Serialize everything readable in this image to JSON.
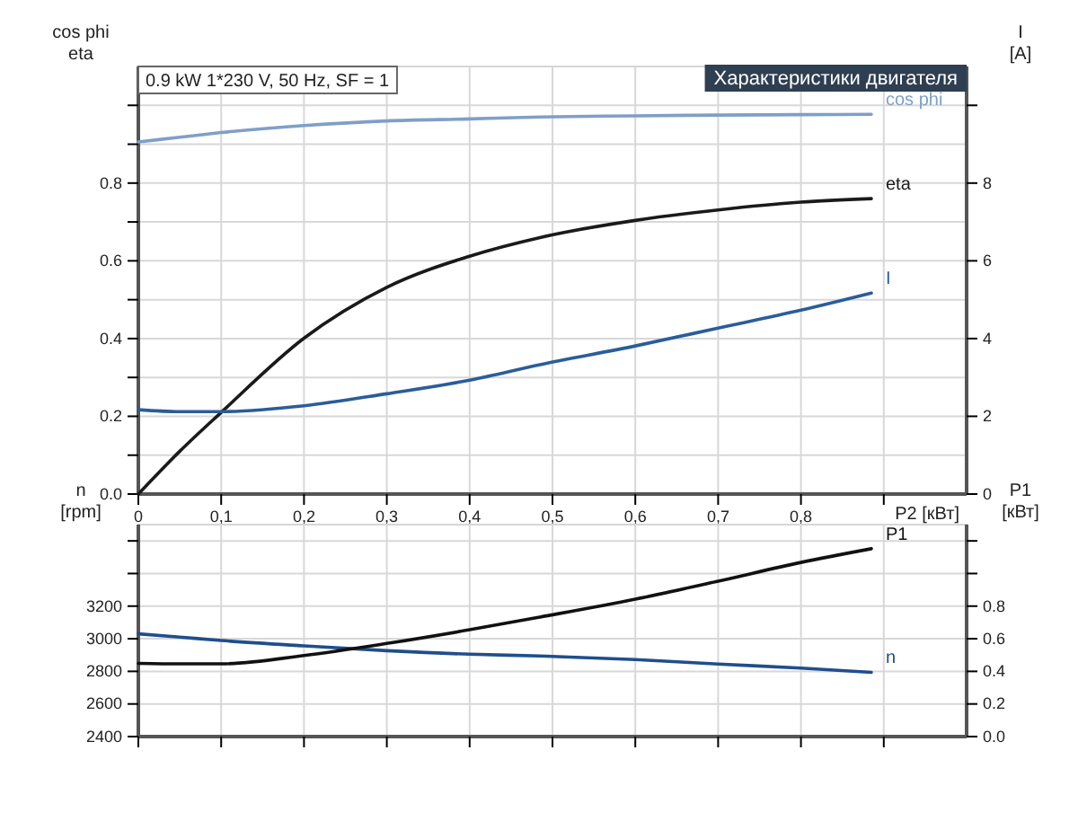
{
  "chart_data": [
    {
      "type": "line",
      "title": "Характеристики двигателя",
      "subtitle": "0.9 kW   1*230 V, 50 Hz, SF = 1",
      "xlabel": "P2 [кВт]",
      "ylabel": "cos phi\neta",
      "y2label": "I\n[A]",
      "grid": true,
      "legend": false,
      "x": [
        0,
        0.05,
        0.1,
        0.2,
        0.3,
        0.4,
        0.485,
        0.6,
        0.7,
        0.8,
        0.885
      ],
      "xlim": [
        0,
        1
      ],
      "xticks": [
        0,
        {
          "value": 0.1,
          "label": "0,1"
        },
        {
          "value": 0.2,
          "label": "0,2"
        },
        {
          "value": 0.3,
          "label": "0,3"
        },
        {
          "value": 0.4,
          "label": "0,4"
        },
        {
          "value": 0.5,
          "label": "0,5"
        },
        {
          "value": 0.6,
          "label": "0,6"
        },
        {
          "value": 0.7,
          "label": "0,7"
        },
        {
          "value": 0.8,
          "label": "0,8"
        },
        {
          "value": 0.9,
          "label": null
        }
      ],
      "ylim": [
        0,
        1.1
      ],
      "yticks": [
        {
          "value": 0,
          "label": "0.0"
        },
        {
          "value": 0.1,
          "label": null
        },
        0.2,
        {
          "value": 0.3,
          "label": null
        },
        0.4,
        {
          "value": 0.5,
          "label": null
        },
        0.6,
        {
          "value": 0.7,
          "label": null
        },
        0.8,
        {
          "value": 0.9,
          "label": null
        },
        {
          "value": 1.0,
          "label": null
        }
      ],
      "y2lim": [
        0,
        11
      ],
      "y2ticks": [
        0,
        2,
        4,
        6,
        8,
        {
          "value": 10,
          "label": null
        }
      ],
      "series": [
        {
          "name": "cos phi",
          "color": "#7f9fc8",
          "values": [
            0.906,
            0.918,
            0.93,
            0.948,
            0.96,
            0.965,
            0.97,
            0.973,
            0.975,
            0.976,
            0.977
          ]
        },
        {
          "name": "eta",
          "color": "#1a1a1a",
          "values": [
            0,
            0.11,
            0.21,
            0.401,
            0.532,
            0.612,
            0.66,
            0.704,
            0.731,
            0.751,
            0.76
          ]
        },
        {
          "name": "I",
          "color": "#2a5d9a",
          "axis": "y2",
          "values": [
            2.17,
            2.12,
            2.12,
            2.27,
            2.58,
            2.93,
            3.33,
            3.81,
            4.27,
            4.73,
            5.17
          ]
        }
      ]
    },
    {
      "type": "line",
      "ylabel": "n\n[rpm]",
      "y2label": "P1\n[кВт]",
      "grid": true,
      "legend": false,
      "tick_labels": "y",
      "x": [
        0,
        0.05,
        0.1,
        0.2,
        0.3,
        0.4,
        0.485,
        0.6,
        0.7,
        0.8,
        0.885
      ],
      "xlim": [
        0,
        1
      ],
      "xticks": [
        {
          "value": 0,
          "label": null
        },
        {
          "value": 0.1,
          "label": null
        },
        {
          "value": 0.2,
          "label": null
        },
        {
          "value": 0.3,
          "label": null
        },
        {
          "value": 0.4,
          "label": null
        },
        {
          "value": 0.5,
          "label": null
        },
        {
          "value": 0.6,
          "label": null
        },
        {
          "value": 0.7,
          "label": null
        },
        {
          "value": 0.8,
          "label": null
        },
        {
          "value": 0.9,
          "label": null
        }
      ],
      "ylim": [
        2400,
        3700
      ],
      "yticks": [
        2400,
        2600,
        2800,
        3000,
        3200,
        {
          "value": 3400,
          "label": null
        },
        {
          "value": 3600,
          "label": null
        }
      ],
      "y2lim": [
        0,
        1.3
      ],
      "y2ticks": [
        {
          "value": 0,
          "label": "0.0"
        },
        0.2,
        0.4,
        0.6,
        0.8,
        {
          "value": 1.0,
          "label": null
        },
        {
          "value": 1.2,
          "label": null
        }
      ],
      "series": [
        {
          "name": "n",
          "color": "#1f4e8c",
          "values": [
            3030,
            3010,
            2989,
            2956,
            2927,
            2905,
            2894,
            2872,
            2845,
            2820,
            2794
          ]
        },
        {
          "name": "P1",
          "color": "#111111",
          "axis": "y2",
          "values": [
            0.449,
            0.446,
            0.446,
            0.497,
            0.571,
            0.655,
            0.733,
            0.843,
            0.953,
            1.068,
            1.152
          ]
        }
      ]
    }
  ]
}
